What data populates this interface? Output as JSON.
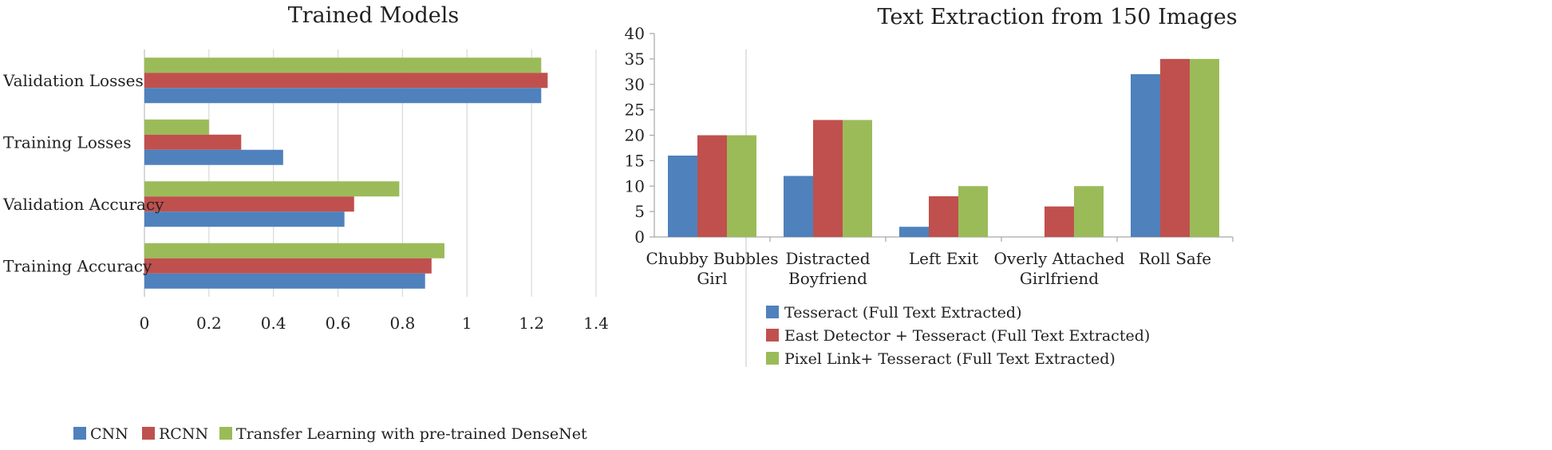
{
  "chart_data": [
    {
      "type": "bar",
      "orientation": "horizontal",
      "title": "Trained Models",
      "categories": [
        "Validation Losses",
        "Training Losses",
        "Validation Accuracy",
        "Training Accuracy"
      ],
      "series": [
        {
          "name": "Transfer Learning with pre-trained DenseNet",
          "color": "#9bbb59",
          "values": [
            1.23,
            0.2,
            0.79,
            0.93
          ]
        },
        {
          "name": "RCNN",
          "color": "#c0504d",
          "values": [
            1.25,
            0.3,
            0.65,
            0.89
          ]
        },
        {
          "name": "CNN",
          "color": "#4f81bd",
          "values": [
            1.23,
            0.43,
            0.62,
            0.87
          ]
        }
      ],
      "xlim": [
        0,
        1.4
      ],
      "xticks": [
        "0",
        "0.2",
        "0.4",
        "0.6",
        "0.8",
        "1",
        "1.2",
        "1.4"
      ],
      "grid": true,
      "legend": {
        "placement": "bottom",
        "order": [
          "CNN",
          "RCNN",
          "Transfer Learning with pre-trained DenseNet"
        ]
      }
    },
    {
      "type": "bar",
      "orientation": "vertical",
      "title": "Text Extraction from 150 Images",
      "categories": [
        [
          "Chubby Bubbles",
          "Girl"
        ],
        [
          "Distracted",
          "Boyfriend"
        ],
        [
          "Left Exit"
        ],
        [
          "Overly Attached",
          "Girlfriend"
        ],
        [
          "Roll Safe"
        ]
      ],
      "series": [
        {
          "name": "Tesseract (Full Text Extracted)",
          "color": "#4f81bd",
          "values": [
            16,
            12,
            2,
            0,
            32
          ]
        },
        {
          "name": "East Detector + Tesseract (Full Text Extracted)",
          "color": "#c0504d",
          "values": [
            20,
            23,
            8,
            6,
            35
          ]
        },
        {
          "name": "Pixel Link+ Tesseract (Full Text Extracted)",
          "color": "#9bbb59",
          "values": [
            20,
            23,
            10,
            10,
            35
          ]
        }
      ],
      "ylim": [
        0,
        40
      ],
      "yticks": [
        "0",
        "5",
        "10",
        "15",
        "20",
        "25",
        "30",
        "35",
        "40"
      ],
      "grid": false,
      "legend": {
        "placement": "bottom"
      }
    }
  ]
}
